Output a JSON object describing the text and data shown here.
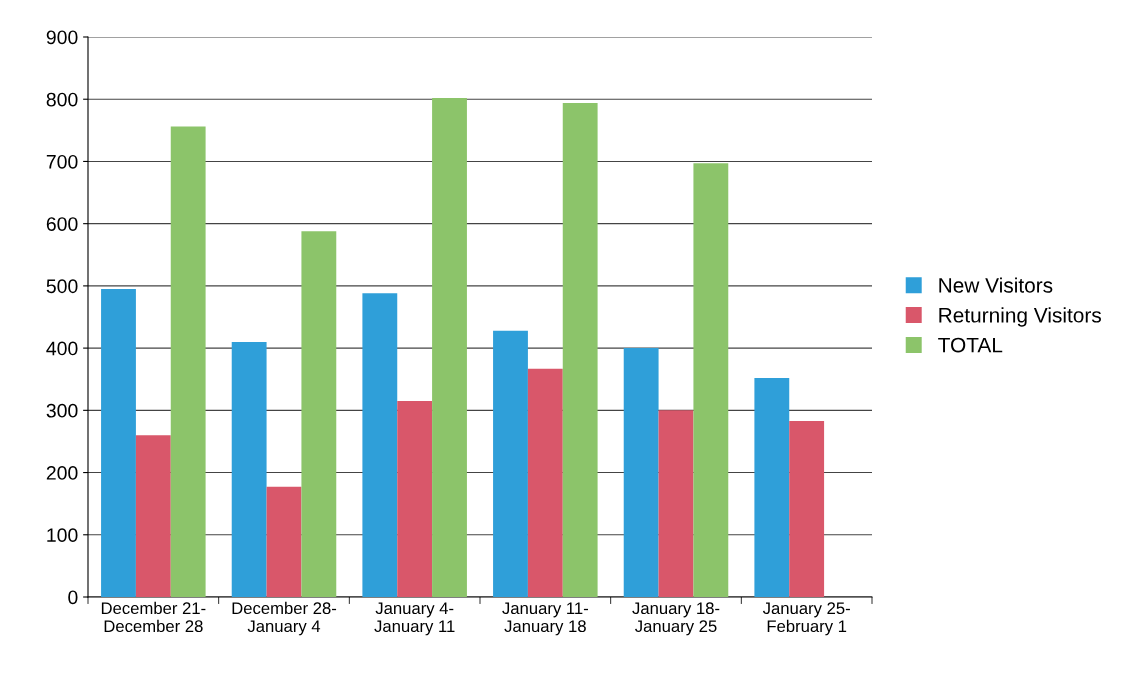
{
  "chart_data": {
    "type": "bar",
    "categories": [
      "December 21-\nDecember 28",
      "December 28-\nJanuary 4",
      "January 4-\nJanuary 11",
      "January 11-\nJanuary 18",
      "January 18-\nJanuary 25",
      "January 25-\nFebruary 1"
    ],
    "series": [
      {
        "name": "New Visitors",
        "color": "#2f9fd9",
        "values": [
          495,
          410,
          488,
          428,
          400,
          352
        ]
      },
      {
        "name": "Returning Visitors",
        "color": "#d9576a",
        "values": [
          260,
          177,
          315,
          367,
          300,
          283
        ]
      },
      {
        "name": "TOTAL",
        "color": "#8cc46a",
        "values": [
          756,
          588,
          802,
          794,
          697,
          null
        ]
      }
    ],
    "ylim": [
      0,
      900
    ],
    "yticks": [
      0,
      100,
      200,
      300,
      400,
      500,
      600,
      700,
      800,
      900
    ],
    "grid": "y",
    "legend": "right"
  }
}
